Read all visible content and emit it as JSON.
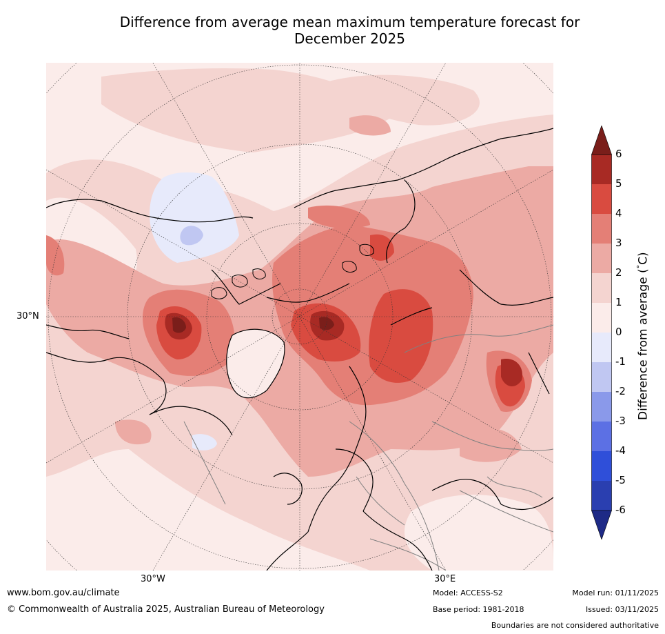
{
  "title": {
    "line1": "Difference from average mean maximum temperature forecast for",
    "line2": "December 2025"
  },
  "map": {
    "projection": "North polar stereographic",
    "graticule_labels": {
      "lat": "30°N",
      "lon_west": "30°W",
      "lon_east": "30°E"
    }
  },
  "colorbar": {
    "label": "Difference from average (°C)",
    "label_parts": {
      "pre": "Difference from average (",
      "deg": "°",
      "post": "C)"
    },
    "ticks": [
      "6",
      "5",
      "4",
      "3",
      "2",
      "1",
      "0",
      "-1",
      "-2",
      "-3",
      "-4",
      "-5",
      "-6"
    ],
    "bins": [
      {
        "from": 5,
        "to": 6,
        "color": "#a82a24"
      },
      {
        "from": 4,
        "to": 5,
        "color": "#d94b40"
      },
      {
        "from": 3,
        "to": 4,
        "color": "#e47f76"
      },
      {
        "from": 2,
        "to": 3,
        "color": "#ecaaa4"
      },
      {
        "from": 1,
        "to": 2,
        "color": "#f4d4d0"
      },
      {
        "from": 0,
        "to": 1,
        "color": "#fbecea"
      },
      {
        "from": -1,
        "to": 0,
        "color": "#e7eafb"
      },
      {
        "from": -2,
        "to": -1,
        "color": "#c0c7f2"
      },
      {
        "from": -3,
        "to": -2,
        "color": "#8a99ea"
      },
      {
        "from": -4,
        "to": -3,
        "color": "#5c70e4"
      },
      {
        "from": -5,
        "to": -4,
        "color": "#2f4fd9"
      },
      {
        "from": -6,
        "to": -5,
        "color": "#2a3fb0"
      }
    ],
    "over_color": "#7a1e1a",
    "under_color": "#1e2a86"
  },
  "footer": {
    "website": "www.bom.gov.au/climate",
    "copyright": "© Commonwealth of Australia 2025, Australian Bureau of Meteorology",
    "model": "Model: ACCESS-S2",
    "base_period": "Base period: 1981-2018",
    "model_run": "Model run: 01/11/2025",
    "issued": "Issued: 03/11/2025",
    "disclaimer": "Boundaries are not considered authoritative"
  }
}
